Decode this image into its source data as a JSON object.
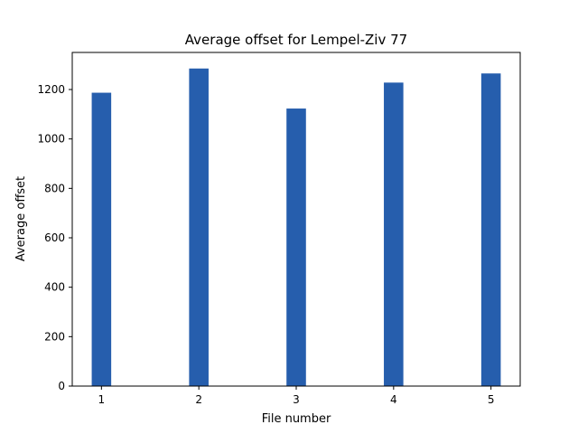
{
  "chart_data": {
    "type": "bar",
    "title": "Average offset for Lempel-Ziv 77",
    "xlabel": "File number",
    "ylabel": "Average offset",
    "categories": [
      "1",
      "2",
      "3",
      "4",
      "5"
    ],
    "x": [
      1,
      2,
      3,
      4,
      5
    ],
    "values": [
      1187,
      1285,
      1123,
      1228,
      1265
    ],
    "yticks": [
      "0",
      "200",
      "400",
      "600",
      "800",
      "1000",
      "1200"
    ],
    "ylim": [
      0,
      1350
    ],
    "xlim": [
      0.7,
      5.3
    ],
    "bar_color": "#265ead",
    "grid": false,
    "legend": false
  }
}
